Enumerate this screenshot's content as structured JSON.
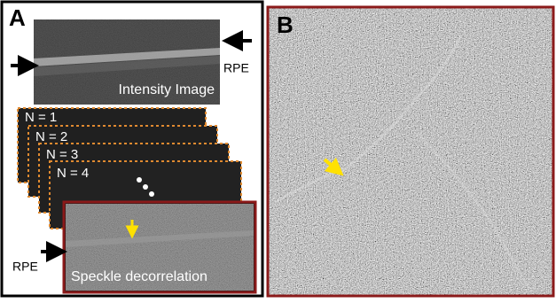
{
  "panel_a": {
    "label": "A",
    "intensity_caption": "Intensity Image",
    "rpe_top": "RPE",
    "frames": [
      "N = 1",
      "N = 2",
      "N = 3",
      "N = 4"
    ],
    "decorrelation_caption": "Speckle decorrelation",
    "rpe_bottom": "RPE"
  },
  "panel_b": {
    "label": "B"
  }
}
